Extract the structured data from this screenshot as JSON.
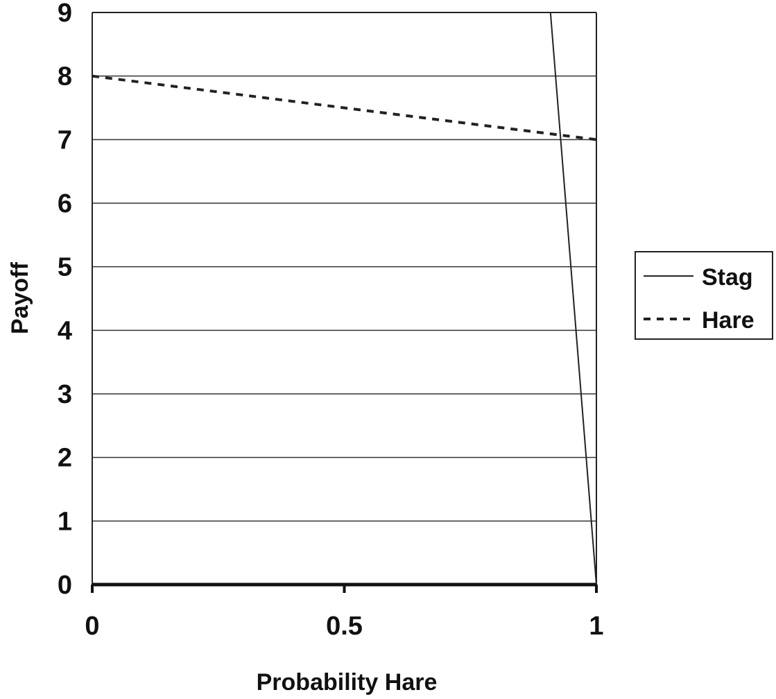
{
  "chart_data": {
    "type": "line",
    "xlabel": "Probability Hare",
    "ylabel": "Payoff",
    "xlim": [
      0,
      1
    ],
    "ylim": [
      0,
      9
    ],
    "xticks": [
      "0",
      "0.5",
      "1"
    ],
    "yticks": [
      "0",
      "1",
      "2",
      "3",
      "4",
      "5",
      "6",
      "7",
      "8",
      "9"
    ],
    "grid": "horizontal",
    "legend_position": "right",
    "series": [
      {
        "name": "Stag",
        "style": "solid",
        "color": "#222222",
        "x": [
          0.909,
          1
        ],
        "y": [
          9,
          0
        ]
      },
      {
        "name": "Hare",
        "style": "dashed",
        "color": "#222222",
        "x": [
          0,
          0.5,
          1
        ],
        "y": [
          8,
          7.5,
          7
        ]
      }
    ]
  }
}
